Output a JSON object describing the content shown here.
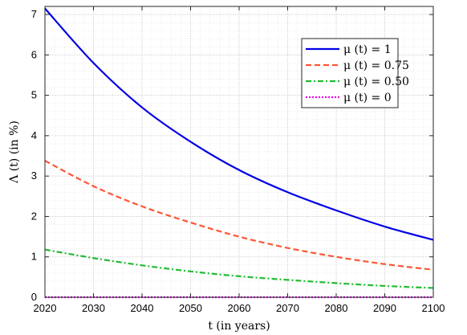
{
  "chart_data": {
    "type": "line",
    "xlabel": "t (in years)",
    "ylabel": "Λ (t) (in %)",
    "xlim": [
      2020,
      2100
    ],
    "ylim": [
      0,
      7.2
    ],
    "xticks": [
      "2020",
      "2030",
      "2040",
      "2050",
      "2060",
      "2070",
      "2080",
      "2090",
      "2100"
    ],
    "yticks": [
      "0",
      "1",
      "2",
      "3",
      "4",
      "5",
      "6",
      "7"
    ],
    "grid": true,
    "minor_grid": true,
    "legend_position": "top-right",
    "x": [
      2020,
      2030,
      2040,
      2050,
      2060,
      2070,
      2080,
      2090,
      2100
    ],
    "series": [
      {
        "name": "μ (t) = 1",
        "color": "#0000e6",
        "dash": "solid",
        "values": [
          7.15,
          5.8,
          4.7,
          3.85,
          3.15,
          2.6,
          2.15,
          1.75,
          1.42
        ]
      },
      {
        "name": "μ (t) = 0.75",
        "color": "#ff5533",
        "dash": "dashed",
        "values": [
          3.38,
          2.75,
          2.25,
          1.85,
          1.5,
          1.22,
          1.0,
          0.82,
          0.68
        ]
      },
      {
        "name": "μ (t) = 0.50",
        "color": "#22bb33",
        "dash": "dashdot",
        "values": [
          1.18,
          0.97,
          0.79,
          0.64,
          0.52,
          0.43,
          0.35,
          0.28,
          0.23
        ]
      },
      {
        "name": "μ (t) = 0",
        "color": "#ee00ee",
        "dash": "dotted",
        "values": [
          0,
          0,
          0,
          0,
          0,
          0,
          0,
          0,
          0
        ]
      }
    ]
  }
}
